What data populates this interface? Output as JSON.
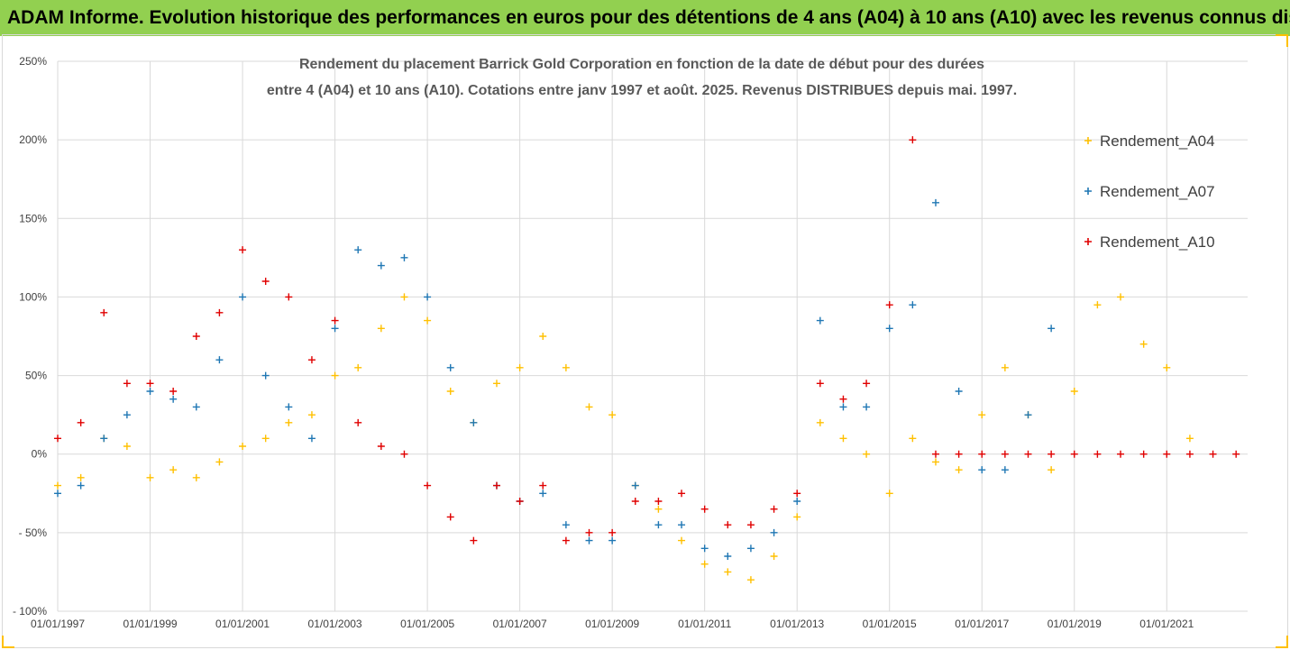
{
  "header": {
    "title": "ADAM Informe. Evolution historique des performances en euros pour des détentions de 4 ans (A04) à 10 ans (A10) avec les revenus connus distribués",
    "background": "#92d050"
  },
  "chart_data": {
    "type": "scatter",
    "title": "Rendement du placement Barrick Gold Corporation en fonction de la date de début pour des durées",
    "subtitle": "entre 4 (A04) et 10 ans (A10). Cotations entre janv 1997 et août. 2025. Revenus DISTRIBUES depuis mai. 1997.",
    "xlabel": "",
    "ylabel": "",
    "x_type": "date",
    "xlim": [
      "1997-01-01",
      "2022-10-01"
    ],
    "ylim": [
      -100,
      250
    ],
    "x_ticks": [
      "01/01/1997",
      "01/01/1999",
      "01/01/2001",
      "01/01/2003",
      "01/01/2005",
      "01/01/2007",
      "01/01/2009",
      "01/01/2011",
      "01/01/2013",
      "01/01/2015",
      "01/01/2017",
      "01/01/2019",
      "01/01/2021"
    ],
    "y_ticks": [
      "250%",
      "200%",
      "150%",
      "100%",
      "50%",
      "0%",
      "- 50%",
      "- 100%"
    ],
    "grid": true,
    "legend_position": "right",
    "marker": "+",
    "series": [
      {
        "name": "Rendement_A04",
        "color": "#ffc000",
        "x": [
          "1997-01",
          "1997-07",
          "1998-01",
          "1998-07",
          "1999-01",
          "1999-07",
          "2000-01",
          "2000-07",
          "2001-01",
          "2001-07",
          "2002-01",
          "2002-07",
          "2003-01",
          "2003-07",
          "2004-01",
          "2004-07",
          "2005-01",
          "2005-07",
          "2006-01",
          "2006-07",
          "2007-01",
          "2007-07",
          "2008-01",
          "2008-07",
          "2009-01",
          "2009-07",
          "2010-01",
          "2010-07",
          "2011-01",
          "2011-07",
          "2012-01",
          "2012-07",
          "2013-01",
          "2013-07",
          "2014-01",
          "2014-07",
          "2015-01",
          "2015-07",
          "2016-01",
          "2016-07",
          "2017-01",
          "2017-07",
          "2018-01",
          "2018-07",
          "2019-01",
          "2019-07",
          "2020-01",
          "2020-07",
          "2021-01",
          "2021-07"
        ],
        "values": [
          -20,
          -15,
          10,
          5,
          -15,
          -10,
          -15,
          -5,
          5,
          10,
          20,
          25,
          50,
          55,
          80,
          100,
          85,
          40,
          20,
          45,
          55,
          75,
          55,
          30,
          25,
          -20,
          -35,
          -55,
          -70,
          -75,
          -80,
          -65,
          -40,
          20,
          10,
          0,
          -25,
          10,
          -5,
          -10,
          25,
          55,
          25,
          -10,
          40,
          95,
          100,
          70,
          55,
          10
        ]
      },
      {
        "name": "Rendement_A07",
        "color": "#1f77b4",
        "x": [
          "1997-01",
          "1997-07",
          "1998-01",
          "1998-07",
          "1999-01",
          "1999-07",
          "2000-01",
          "2000-07",
          "2001-01",
          "2001-07",
          "2002-01",
          "2002-07",
          "2003-01",
          "2003-07",
          "2004-01",
          "2004-07",
          "2005-01",
          "2005-07",
          "2006-01",
          "2006-07",
          "2007-01",
          "2007-07",
          "2008-01",
          "2008-07",
          "2009-01",
          "2009-07",
          "2010-01",
          "2010-07",
          "2011-01",
          "2011-07",
          "2012-01",
          "2012-07",
          "2013-01",
          "2013-07",
          "2014-01",
          "2014-07",
          "2015-01",
          "2015-07",
          "2016-01",
          "2016-07",
          "2017-01",
          "2017-07",
          "2018-01",
          "2018-07"
        ],
        "values": [
          -25,
          -20,
          10,
          25,
          40,
          35,
          30,
          60,
          100,
          50,
          30,
          10,
          80,
          130,
          120,
          125,
          100,
          55,
          20,
          -20,
          -30,
          -25,
          -45,
          -55,
          -55,
          -20,
          -45,
          -45,
          -60,
          -65,
          -60,
          -50,
          -30,
          85,
          30,
          30,
          80,
          95,
          160,
          40,
          -10,
          -10,
          25,
          80
        ]
      },
      {
        "name": "Rendement_A10",
        "color": "#e00000",
        "x": [
          "1997-01",
          "1997-07",
          "1998-01",
          "1998-07",
          "1999-01",
          "1999-07",
          "2000-01",
          "2000-07",
          "2001-01",
          "2001-07",
          "2002-01",
          "2002-07",
          "2003-01",
          "2003-07",
          "2004-01",
          "2004-07",
          "2005-01",
          "2005-07",
          "2006-01",
          "2006-07",
          "2007-01",
          "2007-07",
          "2008-01",
          "2008-07",
          "2009-01",
          "2009-07",
          "2010-01",
          "2010-07",
          "2011-01",
          "2011-07",
          "2012-01",
          "2012-07",
          "2013-01",
          "2013-07",
          "2014-01",
          "2014-07",
          "2015-01",
          "2015-07",
          "2016-01",
          "2016-07",
          "2017-01",
          "2017-07",
          "2018-01",
          "2018-07",
          "2019-01",
          "2019-07",
          "2020-01",
          "2020-07",
          "2021-01",
          "2021-07",
          "2022-01",
          "2022-07"
        ],
        "values": [
          10,
          20,
          90,
          45,
          45,
          40,
          75,
          90,
          130,
          110,
          100,
          60,
          85,
          20,
          5,
          0,
          -20,
          -40,
          -55,
          -20,
          -30,
          -20,
          -55,
          -50,
          -50,
          -30,
          -30,
          -25,
          -35,
          -45,
          -45,
          -35,
          -25,
          45,
          35,
          45,
          95,
          200,
          0,
          0,
          0,
          0,
          0,
          0,
          0,
          0,
          0,
          0,
          0,
          0,
          0,
          0
        ]
      }
    ]
  }
}
